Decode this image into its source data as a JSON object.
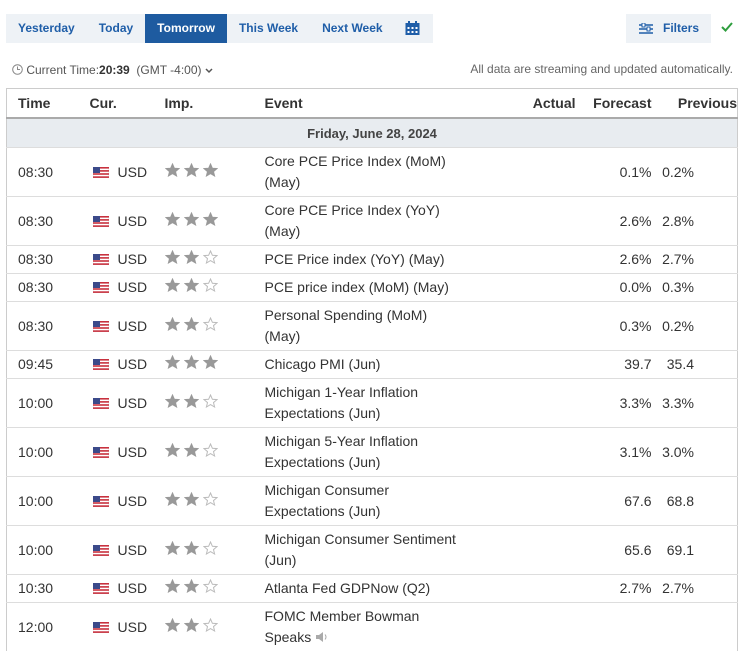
{
  "tabs": [
    "Yesterday",
    "Today",
    "Tomorrow",
    "This Week",
    "Next Week"
  ],
  "active_tab": 2,
  "filters": "Filters",
  "current_time": {
    "label": "Current Time:",
    "time": "20:39",
    "zone": "(GMT -4:00)"
  },
  "streaming_note": "All data are streaming and updated automatically.",
  "table": {
    "columns": [
      "Time",
      "Cur.",
      "Imp.",
      "Event",
      "Actual",
      "Forecast",
      "Previous"
    ],
    "date": "Friday, June 28, 2024",
    "rows": [
      {
        "time": "08:30",
        "currency": "USD",
        "importance": 3,
        "event": "Core PCE Price Index (MoM) (May)",
        "actual": "",
        "forecast": "0.1%",
        "previous": "0.2%"
      },
      {
        "time": "08:30",
        "currency": "USD",
        "importance": 3,
        "event": "Core PCE Price Index (YoY) (May)",
        "actual": "",
        "forecast": "2.6%",
        "previous": "2.8%"
      },
      {
        "time": "08:30",
        "currency": "USD",
        "importance": 2,
        "event": "PCE Price index (YoY) (May)",
        "actual": "",
        "forecast": "2.6%",
        "previous": "2.7%"
      },
      {
        "time": "08:30",
        "currency": "USD",
        "importance": 2,
        "event": "PCE price index (MoM) (May)",
        "actual": "",
        "forecast": "0.0%",
        "previous": "0.3%"
      },
      {
        "time": "08:30",
        "currency": "USD",
        "importance": 2,
        "event": "Personal Spending (MoM) (May)",
        "actual": "",
        "forecast": "0.3%",
        "previous": "0.2%"
      },
      {
        "time": "09:45",
        "currency": "USD",
        "importance": 3,
        "event": "Chicago PMI (Jun)",
        "actual": "",
        "forecast": "39.7",
        "previous": "35.4"
      },
      {
        "time": "10:00",
        "currency": "USD",
        "importance": 2,
        "event": "Michigan 1-Year Inflation Expectations (Jun)",
        "actual": "",
        "forecast": "3.3%",
        "previous": "3.3%"
      },
      {
        "time": "10:00",
        "currency": "USD",
        "importance": 2,
        "event": "Michigan 5-Year Inflation Expectations (Jun)",
        "actual": "",
        "forecast": "3.1%",
        "previous": "3.0%"
      },
      {
        "time": "10:00",
        "currency": "USD",
        "importance": 2,
        "event": "Michigan Consumer Expectations (Jun)",
        "actual": "",
        "forecast": "67.6",
        "previous": "68.8"
      },
      {
        "time": "10:00",
        "currency": "USD",
        "importance": 2,
        "event": "Michigan Consumer Sentiment (Jun)",
        "actual": "",
        "forecast": "65.6",
        "previous": "69.1"
      },
      {
        "time": "10:30",
        "currency": "USD",
        "importance": 2,
        "event": "Atlanta Fed GDPNow (Q2)",
        "actual": "",
        "forecast": "2.7%",
        "previous": "2.7%"
      },
      {
        "time": "12:00",
        "currency": "USD",
        "importance": 2,
        "event": "FOMC Member Bowman Speaks",
        "actual": "",
        "forecast": "",
        "previous": ""
      }
    ]
  }
}
